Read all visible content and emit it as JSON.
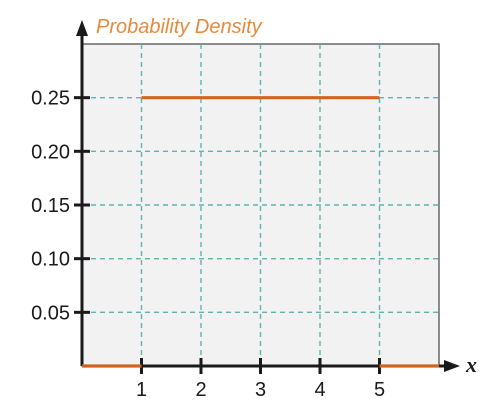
{
  "chart_data": {
    "type": "line",
    "title": "Probability Density",
    "xlabel": "x",
    "ylabel": "",
    "xlim": [
      0,
      6
    ],
    "ylim": [
      0,
      0.3
    ],
    "x_ticks": [
      1,
      2,
      3,
      4,
      5
    ],
    "x_tick_labels": [
      "1",
      "2",
      "3",
      "4",
      "5"
    ],
    "y_ticks": [
      0.05,
      0.1,
      0.15,
      0.2,
      0.25
    ],
    "y_tick_labels": [
      "0.05",
      "0.10",
      "0.15",
      "0.20",
      "0.25"
    ],
    "grid": true,
    "segments": [
      {
        "x": [
          0,
          1
        ],
        "y": [
          0,
          0
        ]
      },
      {
        "x": [
          1,
          5
        ],
        "y": [
          0.25,
          0.25
        ]
      },
      {
        "x": [
          5,
          6
        ],
        "y": [
          0,
          0
        ]
      }
    ],
    "colors": {
      "series": "#d4641c",
      "title": "#e8893a",
      "grid": "#5fb3b0",
      "plot_background": "#f2f2f2",
      "axis": "#1a1a1a"
    }
  }
}
